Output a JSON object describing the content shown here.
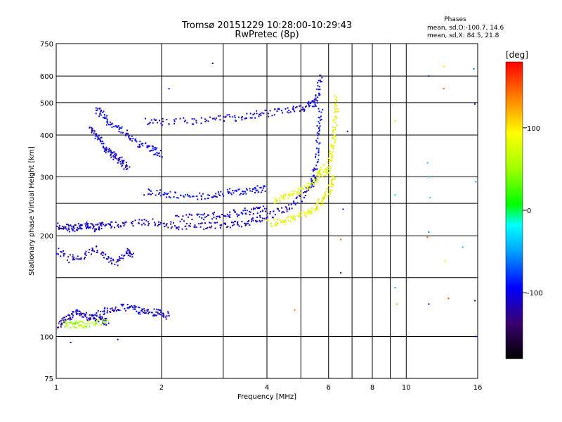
{
  "chart_data": {
    "type": "scatter",
    "title_line1": "Tromsø 20151229 10:28:00-10:29:43",
    "title_line2": "RwPretec (8p)",
    "phases": {
      "heading": "Phases",
      "line_o": "mean, sd,O:-100.7, 14.6",
      "line_x": "mean, sd,X:  84.5, 21.8"
    },
    "xlabel": "Frequency [MHz]",
    "ylabel": "Stationary phase Virtual Height [km]",
    "x_scale": "log",
    "y_scale": "log",
    "xlim": [
      1,
      16
    ],
    "ylim": [
      75,
      750
    ],
    "x_ticks": [
      1,
      2,
      4,
      6,
      8,
      10,
      16
    ],
    "x_ticks_minor_grid": [
      3,
      5,
      7,
      9
    ],
    "y_ticks": [
      75,
      100,
      200,
      300,
      400,
      500,
      600,
      750
    ],
    "y_ticks_minor_grid": [
      150,
      250
    ],
    "colorbar": {
      "label": "[deg]",
      "range": [
        -180,
        180
      ],
      "ticks": [
        100,
        0,
        -100
      ]
    },
    "traces": [
      {
        "x": [
          1.0,
          1.05,
          1.1,
          1.15,
          1.2,
          1.25,
          1.3,
          1.35
        ],
        "y": [
          215,
          212,
          210,
          212,
          215,
          213,
          211,
          214
        ],
        "phase": -110
      },
      {
        "x": [
          1.35,
          1.45,
          1.6,
          1.8,
          2.0,
          2.2,
          2.5,
          2.8,
          3.1,
          3.4,
          3.7,
          4.0,
          4.4,
          4.8,
          5.2,
          5.5
        ],
        "y": [
          214,
          216,
          218,
          220,
          218,
          214,
          213,
          214,
          216,
          218,
          222,
          228,
          238,
          250,
          270,
          300
        ],
        "phase": -115
      },
      {
        "x": [
          2.2,
          2.5,
          2.8,
          3.1,
          3.4,
          3.7,
          4.0
        ],
        "y": [
          224,
          228,
          230,
          232,
          235,
          238,
          242
        ],
        "phase": -105
      },
      {
        "x": [
          1.8,
          2.0,
          2.4,
          2.8,
          3.2,
          3.6,
          4.0,
          4.5,
          5.0,
          5.3,
          5.5,
          5.6,
          5.7
        ],
        "y": [
          440,
          438,
          440,
          445,
          450,
          458,
          465,
          470,
          480,
          490,
          500,
          540,
          600
        ],
        "phase": -108
      },
      {
        "x": [
          1.8,
          2.0,
          2.2,
          2.5,
          2.8,
          3.1,
          3.4,
          3.7,
          4.0
        ],
        "y": [
          270,
          268,
          265,
          262,
          266,
          270,
          272,
          275,
          278
        ],
        "phase": -100
      },
      {
        "x": [
          4.0,
          4.3,
          4.6,
          4.9,
          5.2,
          5.5,
          5.7,
          5.9,
          6.1,
          6.2
        ],
        "y": [
          218,
          220,
          224,
          228,
          234,
          242,
          252,
          265,
          280,
          300
        ],
        "phase": 90
      },
      {
        "x": [
          5.8,
          6.0,
          6.1,
          6.2,
          6.25,
          6.3,
          6.3
        ],
        "y": [
          300,
          320,
          350,
          380,
          420,
          470,
          520
        ],
        "phase": 85
      },
      {
        "x": [
          4.2,
          4.5,
          4.8,
          5.1,
          5.4,
          5.6,
          5.8
        ],
        "y": [
          255,
          262,
          268,
          276,
          285,
          300,
          320
        ],
        "phase": 80
      },
      {
        "x": [
          5.4,
          5.5,
          5.6,
          5.6,
          5.7
        ],
        "y": [
          280,
          320,
          360,
          420,
          480
        ],
        "phase": -95
      },
      {
        "x": [
          1.02,
          1.05,
          1.1,
          1.15,
          1.2,
          1.25,
          1.3,
          1.35,
          1.4
        ],
        "y": [
          108,
          112,
          115,
          118,
          116,
          114,
          113,
          112,
          110
        ],
        "phase": -110
      },
      {
        "x": [
          1.3,
          1.4,
          1.5,
          1.6,
          1.7,
          1.8,
          1.9,
          2.0,
          2.1
        ],
        "y": [
          118,
          120,
          122,
          122,
          120,
          119,
          118,
          117,
          115
        ],
        "phase": -105
      },
      {
        "x": [
          1.05,
          1.1,
          1.15,
          1.2,
          1.3,
          1.4
        ],
        "y": [
          110,
          108,
          109,
          108,
          110,
          112
        ],
        "phase": 55
      },
      {
        "x": [
          1.0,
          1.1,
          1.2,
          1.3,
          1.4,
          1.5,
          1.6,
          1.65
        ],
        "y": [
          180,
          170,
          175,
          185,
          170,
          165,
          180,
          175
        ],
        "phase": -112
      },
      {
        "x": [
          1.25,
          1.3,
          1.35,
          1.4,
          1.45,
          1.5,
          1.55,
          1.6
        ],
        "y": [
          420,
          400,
          380,
          360,
          350,
          340,
          330,
          320
        ],
        "phase": -108
      },
      {
        "x": [
          1.3,
          1.35,
          1.4,
          1.5,
          1.6,
          1.7,
          1.8,
          1.9,
          2.0
        ],
        "y": [
          480,
          460,
          440,
          420,
          400,
          380,
          370,
          360,
          350
        ],
        "phase": -100
      }
    ],
    "sparse_points": [
      {
        "x": 9.3,
        "y": 265,
        "phase": -30
      },
      {
        "x": 9.3,
        "y": 140,
        "phase": -40
      },
      {
        "x": 9.4,
        "y": 125,
        "phase": 120
      },
      {
        "x": 11.6,
        "y": 600,
        "phase": -80
      },
      {
        "x": 11.5,
        "y": 330,
        "phase": -40
      },
      {
        "x": 11.6,
        "y": 300,
        "phase": -35
      },
      {
        "x": 11.7,
        "y": 260,
        "phase": -30
      },
      {
        "x": 11.6,
        "y": 205,
        "phase": -60
      },
      {
        "x": 11.5,
        "y": 198,
        "phase": 150
      },
      {
        "x": 11.6,
        "y": 125,
        "phase": -90
      },
      {
        "x": 12.8,
        "y": 640,
        "phase": 110
      },
      {
        "x": 12.8,
        "y": 550,
        "phase": 150
      },
      {
        "x": 12.9,
        "y": 168,
        "phase": 100
      },
      {
        "x": 13.2,
        "y": 130,
        "phase": 160
      },
      {
        "x": 14.5,
        "y": 185,
        "phase": -40
      },
      {
        "x": 15.6,
        "y": 630,
        "phase": -60
      },
      {
        "x": 15.7,
        "y": 495,
        "phase": -110
      },
      {
        "x": 15.8,
        "y": 290,
        "phase": -50
      },
      {
        "x": 15.7,
        "y": 128,
        "phase": -150
      },
      {
        "x": 15.8,
        "y": 100,
        "phase": -100
      },
      {
        "x": 6.5,
        "y": 195,
        "phase": 150
      },
      {
        "x": 6.5,
        "y": 155,
        "phase": -110
      },
      {
        "x": 6.6,
        "y": 240,
        "phase": -110
      },
      {
        "x": 2.8,
        "y": 655,
        "phase": -110
      },
      {
        "x": 2.1,
        "y": 550,
        "phase": -110
      },
      {
        "x": 1.5,
        "y": 98,
        "phase": -110
      },
      {
        "x": 1.1,
        "y": 96,
        "phase": -110
      },
      {
        "x": 6.8,
        "y": 410,
        "phase": -110
      },
      {
        "x": 4.8,
        "y": 120,
        "phase": 140
      },
      {
        "x": 9.3,
        "y": 440,
        "phase": 60
      }
    ]
  }
}
